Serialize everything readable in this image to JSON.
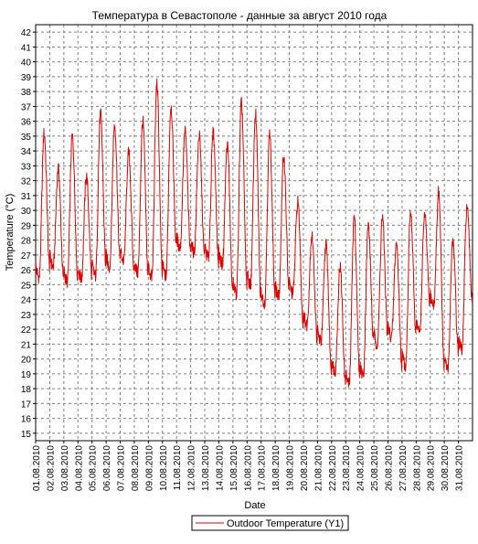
{
  "chart_data": {
    "type": "line",
    "title": "Температура в Севастополе - данные за август 2010 года",
    "xlabel": "Date",
    "ylabel": "Temperature (°C)",
    "ylim": [
      14.5,
      42.5
    ],
    "yticks": [
      15,
      16,
      17,
      18,
      19,
      20,
      21,
      22,
      23,
      24,
      25,
      26,
      27,
      28,
      29,
      30,
      31,
      32,
      33,
      34,
      35,
      36,
      37,
      38,
      39,
      40,
      41,
      42
    ],
    "xlim": [
      1,
      32
    ],
    "xtick_labels": [
      "01.08.2010",
      "02.08.2010",
      "03.08.2010",
      "04.08.2010",
      "05.08.2010",
      "06.08.2010",
      "07.08.2010",
      "08.08.2010",
      "09.08.2010",
      "10.08.2010",
      "11.08.2010",
      "12.08.2010",
      "13.08.2010",
      "14.08.2010",
      "15.08.2010",
      "16.08.2010",
      "17.08.2010",
      "18.08.2010",
      "19.08.2010",
      "20.08.2010",
      "21.08.2010",
      "22.08.2010",
      "23.08.2010",
      "24.08.2010",
      "25.08.2010",
      "26.08.2010",
      "27.08.2010",
      "28.08.2010",
      "29.08.2010",
      "30.08.2010",
      "31.08.2010"
    ],
    "grid": true,
    "legend_position": "bottom-center",
    "series": [
      {
        "name": "Outdoor Temperature (Y1)",
        "color": "#e00000",
        "days": [
          {
            "min": 25.5,
            "max": 35.2
          },
          {
            "min": 26.2,
            "max": 32.8
          },
          {
            "min": 25.2,
            "max": 35.0
          },
          {
            "min": 25.4,
            "max": 32.3
          },
          {
            "min": 25.6,
            "max": 36.5
          },
          {
            "min": 26.2,
            "max": 35.8
          },
          {
            "min": 26.6,
            "max": 33.9
          },
          {
            "min": 25.8,
            "max": 36.0
          },
          {
            "min": 25.5,
            "max": 38.5
          },
          {
            "min": 25.6,
            "max": 37.0
          },
          {
            "min": 27.5,
            "max": 35.3
          },
          {
            "min": 27.2,
            "max": 35.0
          },
          {
            "min": 26.8,
            "max": 35.2
          },
          {
            "min": 26.4,
            "max": 34.4
          },
          {
            "min": 24.4,
            "max": 37.2
          },
          {
            "min": 25.0,
            "max": 36.5
          },
          {
            "min": 23.8,
            "max": 35.1
          },
          {
            "min": 24.2,
            "max": 33.6
          },
          {
            "min": 24.4,
            "max": 30.6
          },
          {
            "min": 22.3,
            "max": 28.3
          },
          {
            "min": 21.2,
            "max": 27.7
          },
          {
            "min": 19.2,
            "max": 26.2
          },
          {
            "min": 18.3,
            "max": 29.6
          },
          {
            "min": 18.9,
            "max": 29.0
          },
          {
            "min": 21.0,
            "max": 29.5
          },
          {
            "min": 21.5,
            "max": 27.8
          },
          {
            "min": 19.6,
            "max": 29.8
          },
          {
            "min": 21.8,
            "max": 29.7
          },
          {
            "min": 23.6,
            "max": 31.3
          },
          {
            "min": 19.3,
            "max": 28.0
          },
          {
            "min": 20.6,
            "max": 30.2
          }
        ],
        "end_value": 23.9
      }
    ]
  }
}
